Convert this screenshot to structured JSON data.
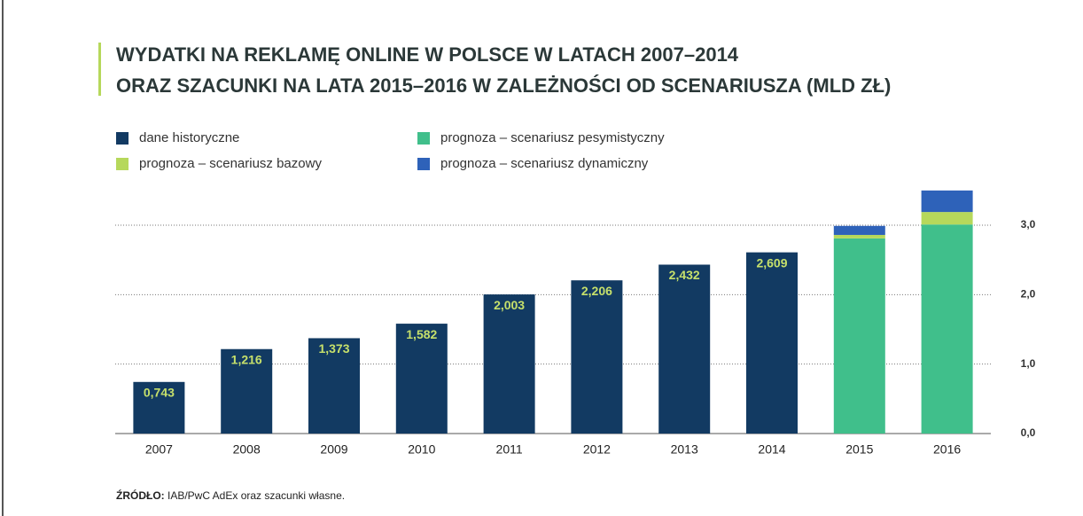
{
  "chart_data": {
    "type": "stacked_bar",
    "title": [
      "WYDATKI NA REKLAMĘ ONLINE W POLSCE W LATACH 2007–2014",
      "ORAZ SZACUNKI NA LATA 2015–2016 W ZALEŻNOŚCI OD SCENARIUSZA (MLD ZŁ)"
    ],
    "categories": [
      "2007",
      "2008",
      "2009",
      "2010",
      "2011",
      "2012",
      "2013",
      "2014",
      "2015",
      "2016"
    ],
    "series": [
      {
        "name": "dane historyczne",
        "color": "#123a62",
        "values": [
          0.743,
          1.216,
          1.373,
          1.582,
          2.003,
          2.206,
          2.432,
          2.609,
          null,
          null
        ],
        "value_labels": [
          "0,743",
          "1,216",
          "1,373",
          "1,582",
          "2,003",
          "2,206",
          "2,432",
          "2,609",
          null,
          null
        ]
      },
      {
        "name": "prognoza – scenariusz pesymistyczny",
        "color": "#40bf8b",
        "values": [
          null,
          null,
          null,
          null,
          null,
          null,
          null,
          null,
          2.81,
          3.01
        ]
      },
      {
        "name": "prognoza – scenariusz bazowy",
        "color": "#b6d85b",
        "values": [
          null,
          null,
          null,
          null,
          null,
          null,
          null,
          null,
          0.05,
          0.18
        ]
      },
      {
        "name": "prognoza – scenariusz dynamiczny",
        "color": "#2e62b9",
        "values": [
          null,
          null,
          null,
          null,
          null,
          null,
          null,
          null,
          0.13,
          0.31
        ]
      }
    ],
    "ylim": [
      0,
      3.0
    ],
    "yticks": [
      {
        "value": 0,
        "label": "0,0"
      },
      {
        "value": 1,
        "label": "1,0"
      },
      {
        "value": 2,
        "label": "2,0"
      },
      {
        "value": 3,
        "label": "3,0"
      }
    ],
    "grid": true,
    "source_label": "ŹRÓDŁO:",
    "source": " IAB/PwC AdEx oraz szacunki własne."
  }
}
